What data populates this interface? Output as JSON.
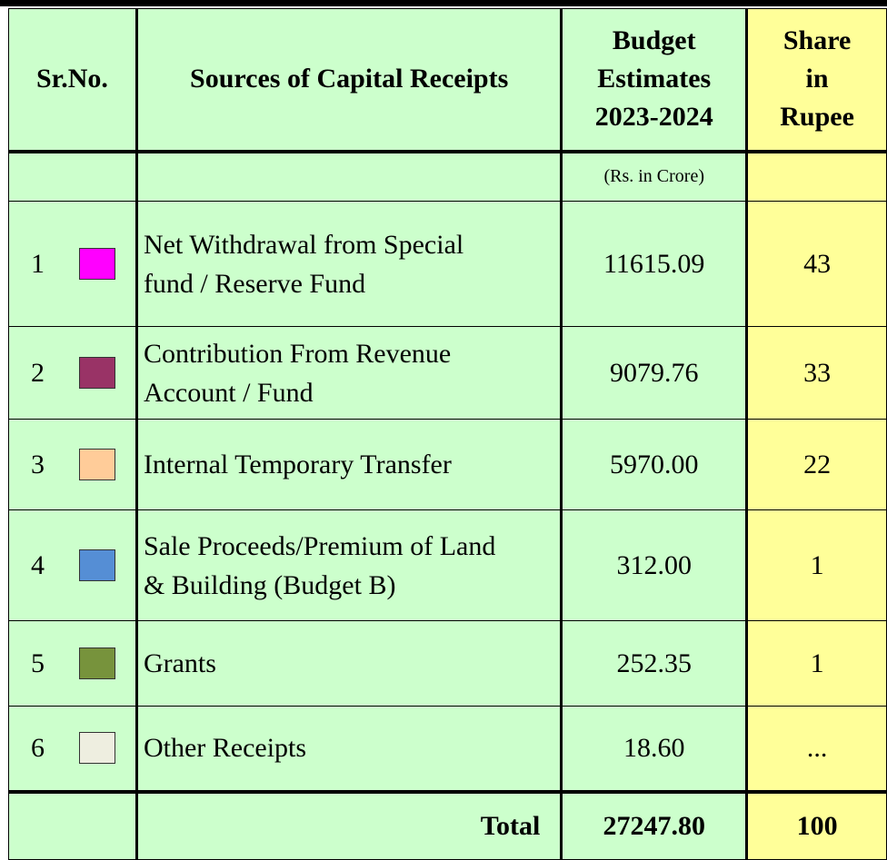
{
  "header": {
    "sr_no": "Sr.No.",
    "source": "Sources of Capital Receipts",
    "budget": [
      "Budget",
      "Estimates",
      "2023-2024"
    ],
    "share": [
      "Share",
      "in",
      "Rupee"
    ]
  },
  "units": "(Rs. in Crore)",
  "rows": [
    {
      "sr": "1",
      "color": "#ff00ff",
      "source": [
        "Net Withdrawal from Special",
        "fund / Reserve Fund"
      ],
      "budget": "11615.09",
      "share": "43"
    },
    {
      "sr": "2",
      "color": "#993366",
      "source": [
        "Contribution From Revenue",
        "Account / Fund"
      ],
      "budget": "9079.76",
      "share": "33"
    },
    {
      "sr": "3",
      "color": "#ffcc99",
      "source": [
        "Internal Temporary Transfer"
      ],
      "budget": "5970.00",
      "share": "22"
    },
    {
      "sr": "4",
      "color": "#558ed5",
      "source": [
        "Sale Proceeds/Premium of Land",
        "& Building (Budget B)"
      ],
      "budget": "312.00",
      "share": "1"
    },
    {
      "sr": "5",
      "color": "#77933c",
      "source": [
        "Grants"
      ],
      "budget": "252.35",
      "share": "1"
    },
    {
      "sr": "6",
      "color": "#eeeee0",
      "source": [
        "Other Receipts"
      ],
      "budget": "18.60",
      "share": "..."
    }
  ],
  "total": {
    "label": "Total",
    "budget": "27247.80",
    "share": "100"
  }
}
